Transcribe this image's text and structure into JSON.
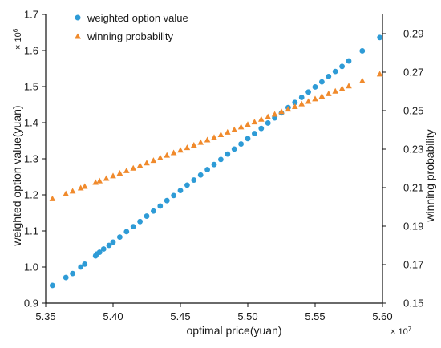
{
  "chart_data": {
    "type": "scatter",
    "xlabel": "optimal price(yuan)",
    "ylabel": "weighted option value(yuan)",
    "y2label": "winning probability",
    "x_scale_base": "× 10",
    "x_scale_exp": "7",
    "y_scale_base": "× 10",
    "y_scale_exp": "6",
    "xlim": [
      5.35,
      5.6
    ],
    "ylim": [
      0.9,
      1.7
    ],
    "y2lim": [
      0.15,
      0.3
    ],
    "x_ticks": [
      "5.35",
      "5.40",
      "5.45",
      "5.50",
      "5.55",
      "5.60"
    ],
    "y_ticks": [
      "0.9",
      "1.0",
      "1.1",
      "1.2",
      "1.3",
      "1.4",
      "1.5",
      "1.6",
      "1.7"
    ],
    "y2_ticks": [
      "0.15",
      "0.17",
      "0.19",
      "0.21",
      "0.23",
      "0.25",
      "0.27",
      "0.29"
    ],
    "grid": false,
    "legend_position": "top-left",
    "colors": {
      "weighted": "#2e9bd6",
      "winning": "#f08a2c"
    },
    "series": [
      {
        "name": "weighted option value",
        "axis": "left",
        "marker": "circle",
        "x": [
          5.355,
          5.365,
          5.37,
          5.376,
          5.379,
          5.387,
          5.388,
          5.39,
          5.393,
          5.397,
          5.4,
          5.405,
          5.41,
          5.415,
          5.42,
          5.425,
          5.43,
          5.435,
          5.44,
          5.445,
          5.45,
          5.455,
          5.46,
          5.465,
          5.47,
          5.475,
          5.48,
          5.485,
          5.49,
          5.495,
          5.5,
          5.505,
          5.51,
          5.515,
          5.52,
          5.525,
          5.53,
          5.535,
          5.54,
          5.545,
          5.55,
          5.555,
          5.56,
          5.565,
          5.57,
          5.575,
          5.585,
          5.598
        ],
        "y": [
          0.949,
          0.971,
          0.982,
          1.0,
          1.008,
          1.031,
          1.036,
          1.041,
          1.05,
          1.06,
          1.069,
          1.083,
          1.098,
          1.112,
          1.126,
          1.141,
          1.155,
          1.169,
          1.184,
          1.198,
          1.212,
          1.227,
          1.241,
          1.255,
          1.27,
          1.284,
          1.298,
          1.313,
          1.327,
          1.341,
          1.356,
          1.37,
          1.384,
          1.399,
          1.413,
          1.427,
          1.442,
          1.456,
          1.47,
          1.485,
          1.499,
          1.513,
          1.528,
          1.542,
          1.556,
          1.571,
          1.599,
          1.636
        ]
      },
      {
        "name": "winning probability",
        "axis": "right",
        "marker": "triangle",
        "x": [
          5.355,
          5.365,
          5.37,
          5.376,
          5.379,
          5.387,
          5.39,
          5.395,
          5.4,
          5.405,
          5.41,
          5.415,
          5.42,
          5.425,
          5.43,
          5.435,
          5.44,
          5.445,
          5.45,
          5.455,
          5.46,
          5.465,
          5.47,
          5.475,
          5.48,
          5.485,
          5.49,
          5.495,
          5.5,
          5.505,
          5.51,
          5.515,
          5.52,
          5.525,
          5.53,
          5.535,
          5.54,
          5.545,
          5.55,
          5.555,
          5.56,
          5.565,
          5.57,
          5.575,
          5.585,
          5.598
        ],
        "y": [
          0.2042,
          0.2068,
          0.2082,
          0.2098,
          0.2106,
          0.2127,
          0.2135,
          0.2148,
          0.2161,
          0.2175,
          0.2188,
          0.2201,
          0.2215,
          0.2228,
          0.2241,
          0.2255,
          0.2268,
          0.2281,
          0.2295,
          0.2308,
          0.2321,
          0.2335,
          0.2348,
          0.2361,
          0.2375,
          0.2388,
          0.2401,
          0.2415,
          0.2428,
          0.2441,
          0.2455,
          0.2468,
          0.2481,
          0.2495,
          0.2508,
          0.2521,
          0.2535,
          0.2548,
          0.2561,
          0.2575,
          0.2588,
          0.2601,
          0.2615,
          0.2628,
          0.2655,
          0.269
        ]
      }
    ]
  }
}
